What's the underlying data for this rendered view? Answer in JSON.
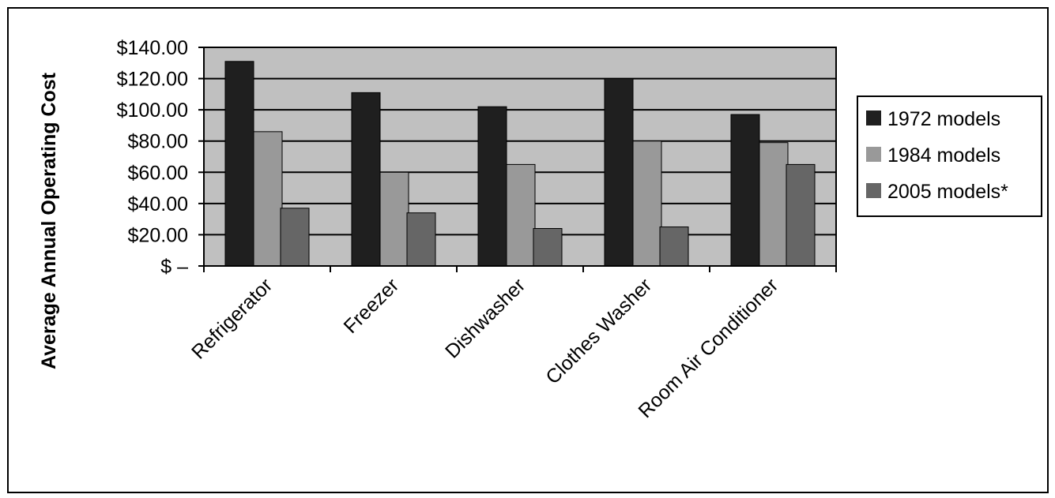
{
  "chart_data": {
    "type": "bar",
    "title": "",
    "ylabel": "Average Annual Operating Cost",
    "xlabel": "",
    "categories": [
      "Refrigerator",
      "Freezer",
      "Dishwasher",
      "Clothes Washer",
      "Room Air Conditioner"
    ],
    "series": [
      {
        "name": "1972 models",
        "values": [
          131,
          111,
          102,
          120,
          97
        ],
        "color": "#1f1f1f"
      },
      {
        "name": "1984 models",
        "values": [
          86,
          60,
          65,
          80,
          79
        ],
        "color": "#999999"
      },
      {
        "name": "2005 models*",
        "values": [
          37,
          34,
          24,
          25,
          65
        ],
        "color": "#666666"
      }
    ],
    "ylim": [
      0,
      140
    ],
    "yticks": [
      0,
      20,
      40,
      60,
      80,
      100,
      120,
      140
    ],
    "ytick_labels": [
      "$ –",
      "$20.00",
      "$40.00",
      "$60.00",
      "$80.00",
      "$100.00",
      "$120.00",
      "$140.00"
    ],
    "grid": true,
    "plot_background": "#c0c0c0",
    "legend_position": "right"
  }
}
